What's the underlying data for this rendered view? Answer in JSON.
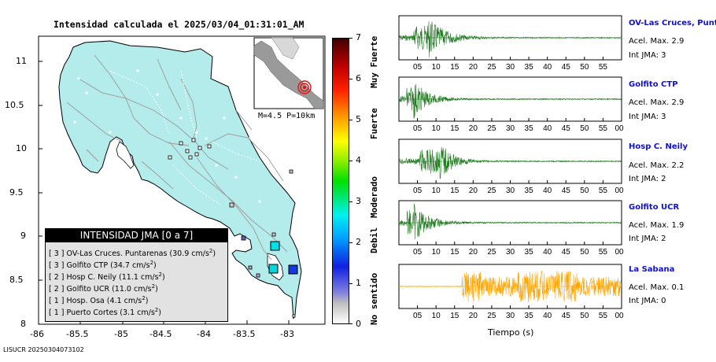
{
  "map": {
    "title": "Intensidad calculada el 2025/03/04_01:31:01_AM",
    "lat_ticks": [
      "11",
      "10.5",
      "10",
      "9.5",
      "9",
      "8.5",
      "8"
    ],
    "lon_ticks": [
      "-86",
      "-85.5",
      "-85",
      "-84.5",
      "-84",
      "-83.5",
      "-83"
    ],
    "inset_label": "M=4.5 P=10km",
    "land_color": "#b4ecec",
    "sea_color": "#ffffff"
  },
  "colorbar": {
    "ticks": [
      "0",
      "1",
      "2",
      "3",
      "4",
      "5",
      "6",
      "7"
    ],
    "categories": [
      "No sentido",
      "Debil",
      "Moderado",
      "Fuerte",
      "Muy Fuerte"
    ]
  },
  "legend": {
    "title": "INTENSIDAD JMA [0 a 7]",
    "rows": [
      {
        "level": "[ 3 ]",
        "text": "OV-Las Cruces. Puntarenas (30.9 cm/s",
        "sup": "2",
        "close": ")"
      },
      {
        "level": "[ 3 ]",
        "text": "Golfito CTP (34.7 cm/s",
        "sup": "2",
        "close": ")"
      },
      {
        "level": "[ 2 ]",
        "text": "Hosp C. Neily (11.1 cm/s",
        "sup": "2",
        "close": ")"
      },
      {
        "level": "[ 2 ]",
        "text": "Golfito UCR (11.0 cm/s",
        "sup": "2",
        "close": ")"
      },
      {
        "level": "[ 1 ]",
        "text": "Hosp. Osa (4.1 cm/s",
        "sup": "2",
        "close": ")"
      },
      {
        "level": "[ 1 ]",
        "text": "Puerto Cortes (3.1 cm/s",
        "sup": "2",
        "close": ")"
      }
    ]
  },
  "stations": [
    {
      "name": "OV-Las Cruces, Puntar",
      "acc": "Acel. Max. 2.9",
      "int": "Int JMA: 3",
      "color": "#1e7a1e"
    },
    {
      "name": "Golfito CTP",
      "acc": "Acel. Max. 2.9",
      "int": "Int JMA: 3",
      "color": "#1e7a1e"
    },
    {
      "name": "Hosp C. Neily",
      "acc": "Acel. Max. 2.2",
      "int": "Int JMA: 2",
      "color": "#1e7a1e"
    },
    {
      "name": "Golfito UCR",
      "acc": "Acel. Max. 1.9",
      "int": "Int JMA: 2",
      "color": "#1e7a1e"
    },
    {
      "name": "La Sabana",
      "acc": "Acel. Max. 0.1",
      "int": "Int JMA: 0",
      "color": "#ffa500"
    }
  ],
  "wave_ticks": [
    "05",
    "10",
    "15",
    "20",
    "25",
    "30",
    "35",
    "40",
    "45",
    "50",
    "55"
  ],
  "wave_ticks_end": "00",
  "time_label": "Tiempo (s)",
  "footer_id": "LISUCR 20250304073102"
}
